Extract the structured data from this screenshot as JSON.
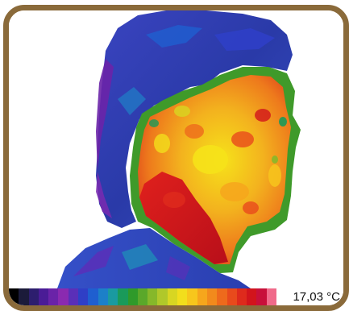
{
  "temperature_readout": "17,03 °C",
  "colors": {
    "frame": "#8a6a3a",
    "background": "#ffffff",
    "hot_red": "#d2141c",
    "warm_orange": "#f39a1e",
    "yellow": "#f6e21a",
    "green": "#4f9a2a",
    "cool_blue": "#2a46b8",
    "cold_purple": "#6a2a9c"
  },
  "palette": [
    "#000000",
    "#1b1b3a",
    "#2d1e6e",
    "#4a1c96",
    "#6a23a8",
    "#8a2ab0",
    "#5a2fb8",
    "#2f3fc6",
    "#1f5fd0",
    "#1c80c8",
    "#1a9aa0",
    "#1a9a5a",
    "#2f9a2a",
    "#5aa82a",
    "#86b82a",
    "#b0c82a",
    "#d8d622",
    "#f2de1c",
    "#f7c61c",
    "#f6a61c",
    "#f28a1c",
    "#ee6a1c",
    "#e84a1c",
    "#de2a1c",
    "#d2141c",
    "#c8103a",
    "#f06a8a"
  ]
}
